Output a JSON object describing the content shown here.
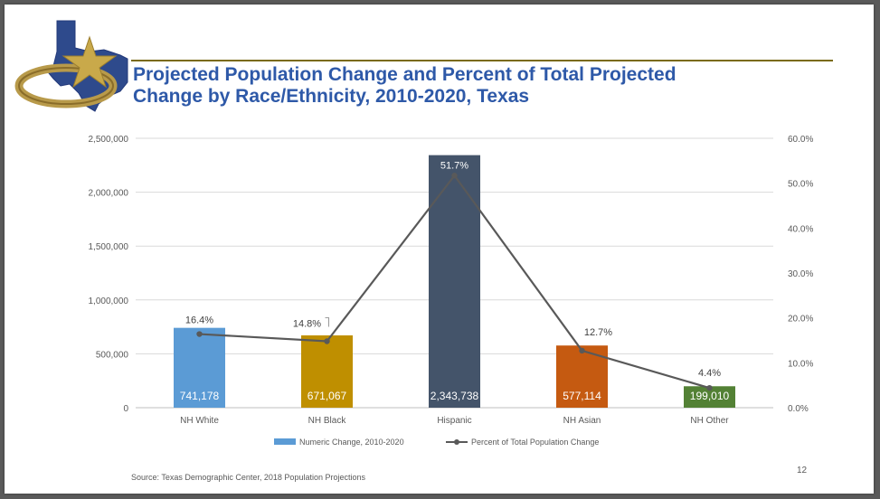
{
  "slide": {
    "title_line1": "Projected Population Change and Percent of Total Projected",
    "title_line2": "Change by Race/Ethnicity, 2010-2020, Texas",
    "source": "Source: Texas Demographic Center, 2018 Population Projections",
    "page_number": "12"
  },
  "logo": {
    "icon": "texas-star-logo-icon",
    "colors": {
      "texas": "#2e4a8c",
      "star": "#c9a94a",
      "ring": "#b89a4a"
    }
  },
  "chart_data": {
    "type": "bar",
    "categories": [
      "NH White",
      "NH Black",
      "Hispanic",
      "NH Asian",
      "NH Other"
    ],
    "series": [
      {
        "name": "Numeric Change, 2010-2020",
        "kind": "bar",
        "axis": "left",
        "values": [
          741178,
          671067,
          2343738,
          577114,
          199010
        ],
        "labels": [
          "741,178",
          "671,067",
          "2,343,738",
          "577,114",
          "199,010"
        ],
        "colors": [
          "#5b9bd5",
          "#bf8f00",
          "#44546a",
          "#c55a11",
          "#538135"
        ],
        "legend_color": "#5b9bd5"
      },
      {
        "name": "Percent of Total Population Change",
        "kind": "line",
        "axis": "right",
        "values": [
          16.4,
          14.8,
          51.7,
          12.7,
          4.4
        ],
        "labels": [
          "16.4%",
          "14.8%",
          "51.7%",
          "12.7%",
          "4.4%"
        ],
        "color": "#595959"
      }
    ],
    "y_left": {
      "range": [
        0,
        2500000
      ],
      "ticks": [
        0,
        500000,
        1000000,
        1500000,
        2000000,
        2500000
      ],
      "tick_labels": [
        "0",
        "500,000",
        "1,000,000",
        "1,500,000",
        "2,000,000",
        "2,500,000"
      ]
    },
    "y_right": {
      "range": [
        0,
        60
      ],
      "ticks": [
        0,
        10,
        20,
        30,
        40,
        50,
        60
      ],
      "tick_labels": [
        "0.0%",
        "10.0%",
        "20.0%",
        "30.0%",
        "40.0%",
        "50.0%",
        "60.0%"
      ]
    },
    "grid": true,
    "legend_position": "bottom"
  }
}
